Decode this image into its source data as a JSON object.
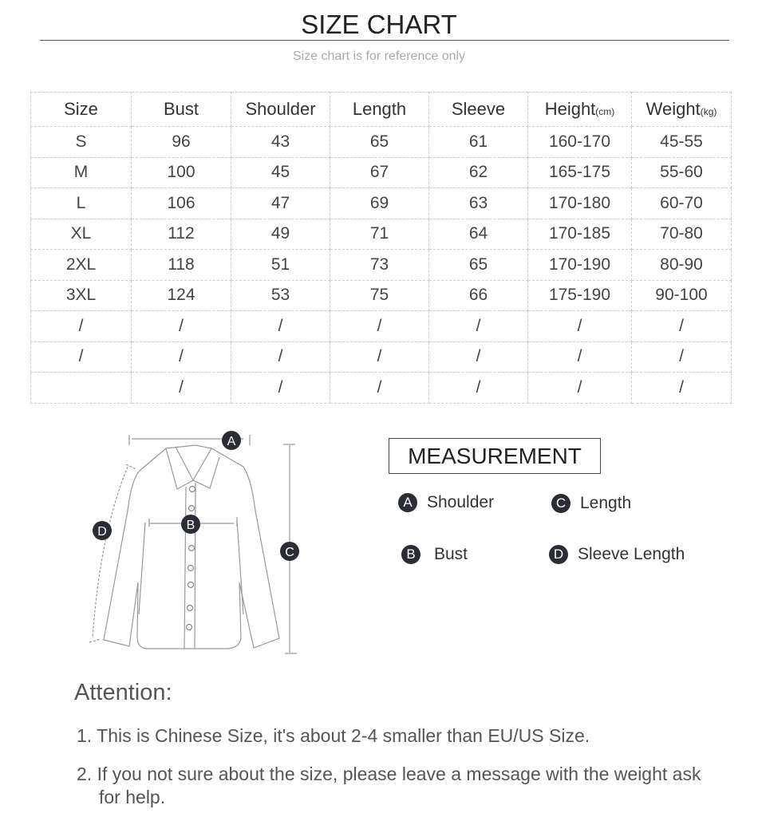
{
  "header": {
    "title": "SIZE CHART",
    "subtitle": "Size chart is for reference only"
  },
  "table": {
    "columns": [
      {
        "label": "Size",
        "unit": ""
      },
      {
        "label": "Bust",
        "unit": ""
      },
      {
        "label": "Shoulder",
        "unit": ""
      },
      {
        "label": "Length",
        "unit": ""
      },
      {
        "label": "Sleeve",
        "unit": ""
      },
      {
        "label": "Height",
        "unit": "(cm)"
      },
      {
        "label": "Weight",
        "unit": "(kg)"
      }
    ],
    "rows": [
      [
        "S",
        "96",
        "43",
        "65",
        "61",
        "160-170",
        "45-55"
      ],
      [
        "M",
        "100",
        "45",
        "67",
        "62",
        "165-175",
        "55-60"
      ],
      [
        "L",
        "106",
        "47",
        "69",
        "63",
        "170-180",
        "60-70"
      ],
      [
        "XL",
        "112",
        "49",
        "71",
        "64",
        "170-185",
        "70-80"
      ],
      [
        "2XL",
        "118",
        "51",
        "73",
        "65",
        "170-190",
        "80-90"
      ],
      [
        "3XL",
        "124",
        "53",
        "75",
        "66",
        "175-190",
        "90-100"
      ],
      [
        "/",
        "/",
        "/",
        "/",
        "/",
        "/",
        "/"
      ],
      [
        "/",
        "/",
        "/",
        "/",
        "/",
        "/",
        "/"
      ],
      [
        "",
        "/",
        "/",
        "/",
        "/",
        "/",
        "/"
      ]
    ]
  },
  "measurement": {
    "title": "MEASUREMENT",
    "items": [
      {
        "letter": "A",
        "label": "Shoulder"
      },
      {
        "letter": "C",
        "label": "Length"
      },
      {
        "letter": "B",
        "label": "Bust"
      },
      {
        "letter": "D",
        "label": "Sleeve Length"
      }
    ]
  },
  "diagram": {
    "markers": [
      "A",
      "B",
      "C",
      "D"
    ]
  },
  "attention": {
    "title": "Attention:",
    "notes": [
      "1. This is Chinese Size, it's about 2-4 smaller than EU/US Size.",
      "2. If you not sure about the size, please leave a message with the weight ask for help."
    ]
  },
  "colors": {
    "badge": "#2a2d38",
    "grid": "#cccccc"
  }
}
